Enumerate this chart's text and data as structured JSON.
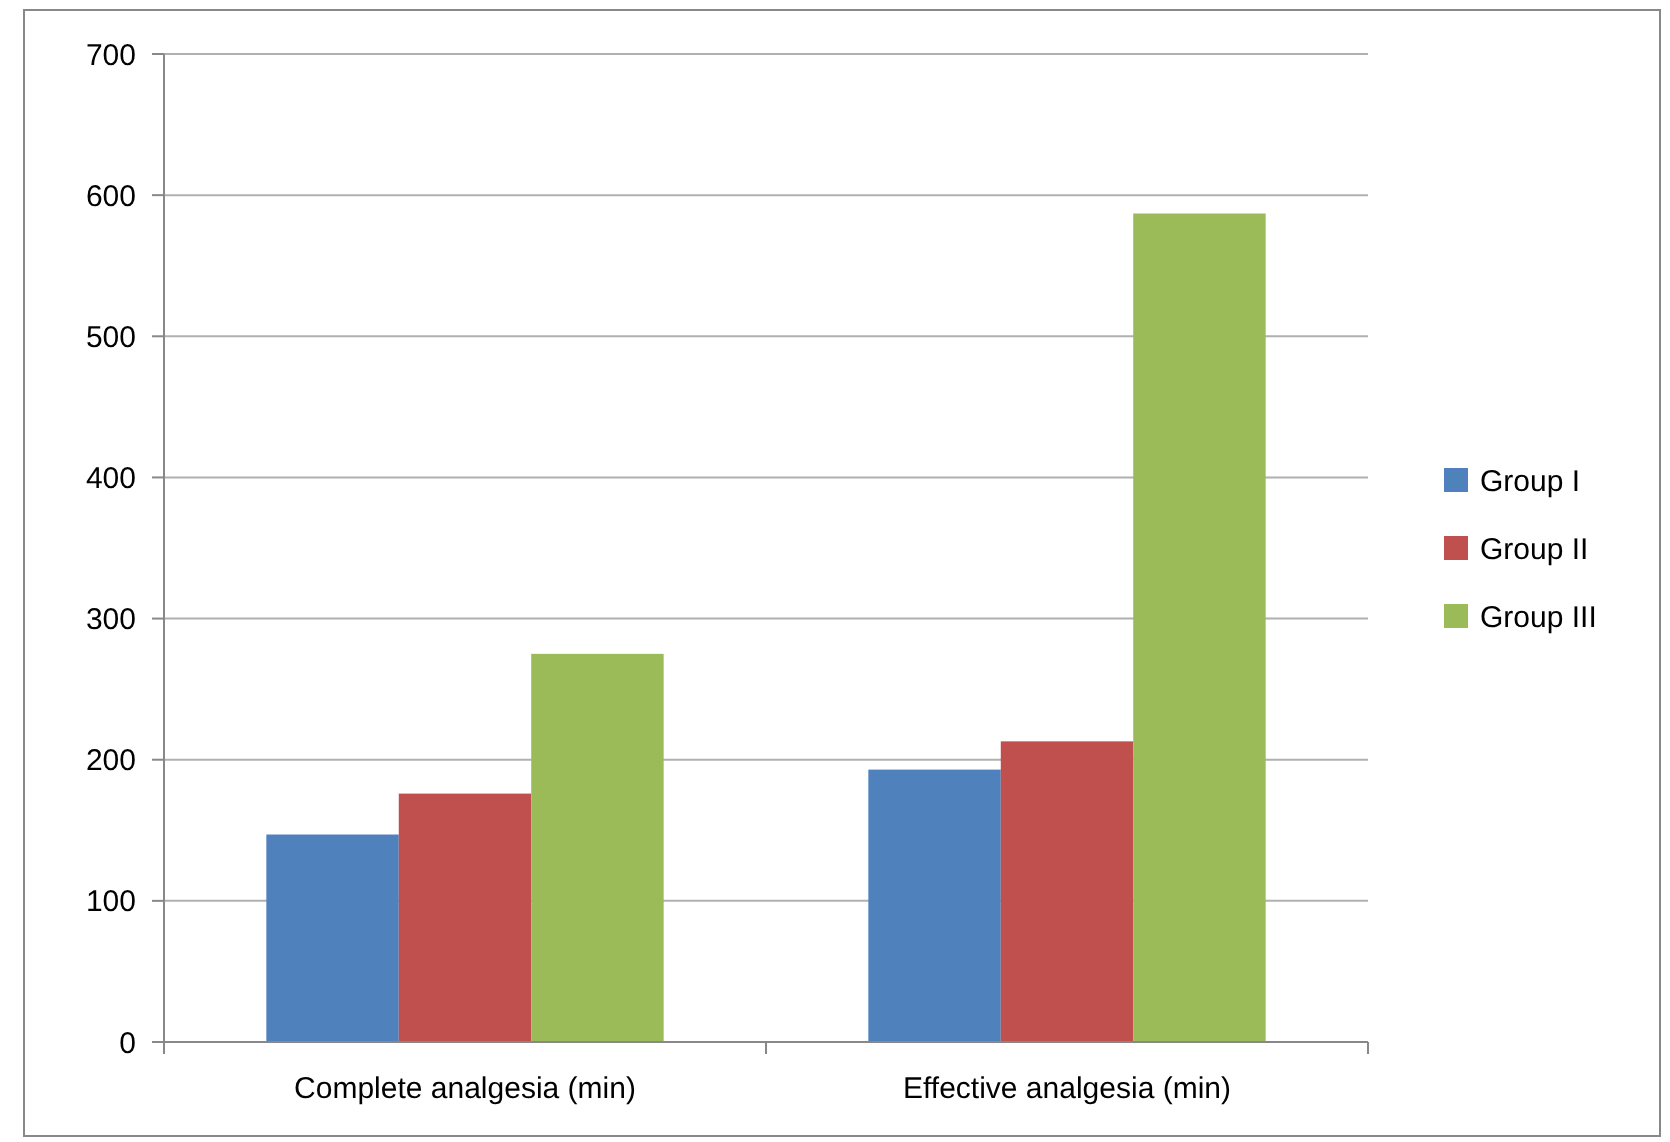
{
  "chart_data": {
    "type": "bar",
    "categories": [
      "Complete analgesia (min)",
      "Effective analgesia (min)"
    ],
    "series": [
      {
        "name": "Group I",
        "color": "#4f81bd",
        "values": [
          147,
          193
        ]
      },
      {
        "name": "Group II",
        "color": "#c0504d",
        "values": [
          176,
          213
        ]
      },
      {
        "name": "Group III",
        "color": "#9bbb59",
        "values": [
          275,
          587
        ]
      }
    ],
    "ylim": [
      0,
      700
    ],
    "yticks": [
      0,
      100,
      200,
      300,
      400,
      500,
      600,
      700
    ],
    "grid": "y",
    "legend": "right"
  }
}
